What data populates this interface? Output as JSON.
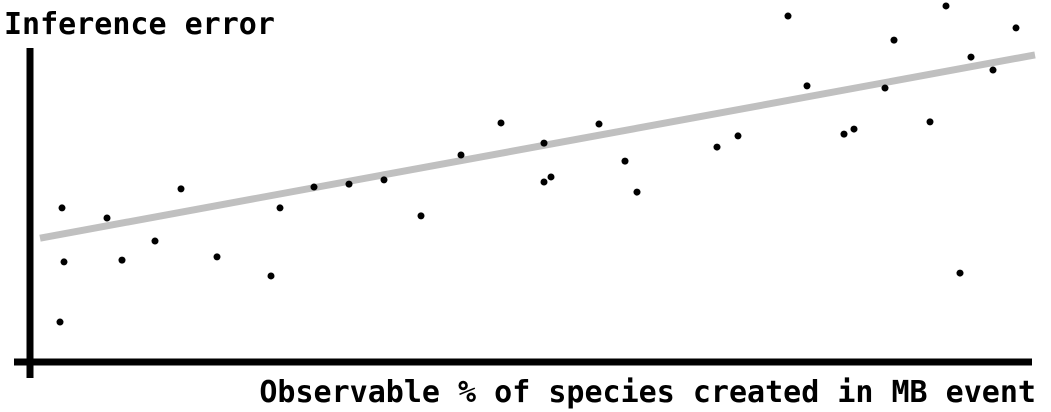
{
  "chart_data": {
    "type": "scatter",
    "y_label": "Inference error",
    "x_label": "Observable % of species created in MB event",
    "xlim": [
      0,
      100
    ],
    "ylim": [
      0,
      100
    ],
    "color": "#000000",
    "x": [
      3.2,
      3.4,
      3.0,
      7.7,
      9.2,
      12.5,
      15.1,
      18.7,
      24.1,
      25,
      28.4,
      31.9,
      35.4,
      39.1,
      43.1,
      47.1,
      51.4,
      51.4,
      52.1,
      56.9,
      59.5,
      60.7,
      68.7,
      70.8,
      75.8,
      77.7,
      81.4,
      82.4,
      85.5,
      86.4,
      90,
      91.6,
      93,
      94.1,
      96.3,
      98.6
    ],
    "values": [
      42.8,
      27.8,
      11.1,
      40,
      28.3,
      33.6,
      48.1,
      29.2,
      23.9,
      42.8,
      48.6,
      49.4,
      50.6,
      40.6,
      57.5,
      66.4,
      60.8,
      50,
      51.4,
      66.1,
      55.8,
      47.2,
      59.7,
      62.8,
      96.1,
      76.7,
      63.3,
      64.7,
      76.1,
      89.4,
      66.7,
      98.9,
      24.7,
      84.7,
      81.1,
      92.8
    ],
    "trend_line": {
      "x": [
        1,
        100.5
      ],
      "values": [
        34.4,
        85.3
      ],
      "color": "#c0c0c0"
    }
  }
}
